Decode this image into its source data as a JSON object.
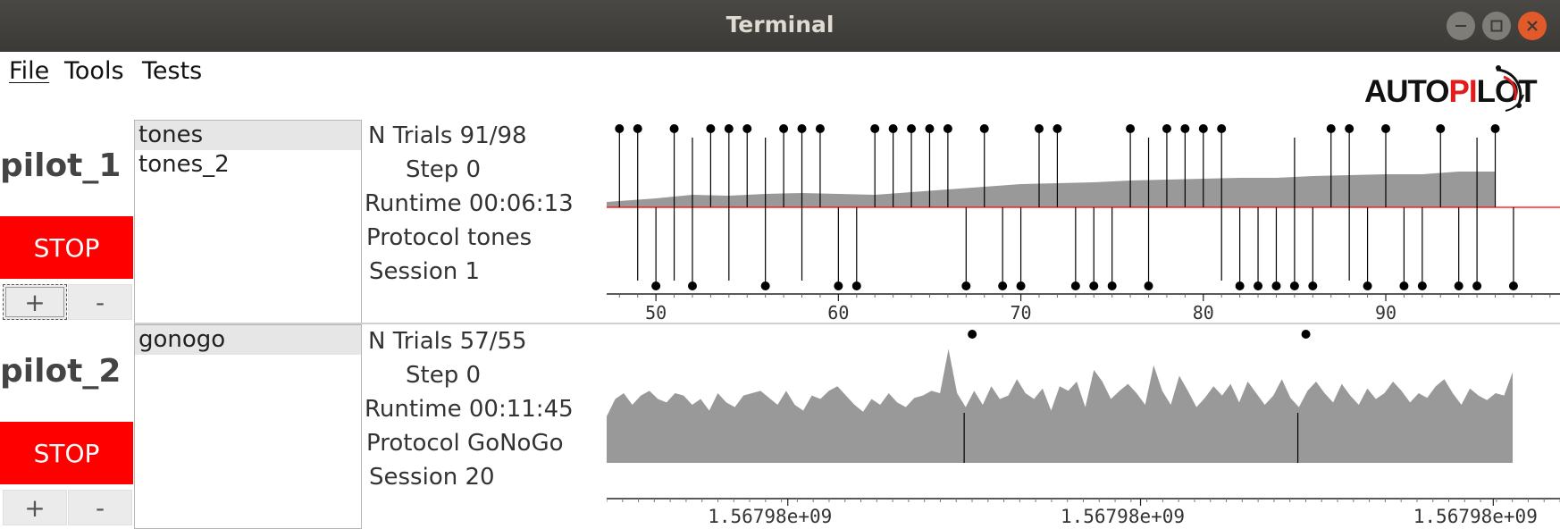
{
  "window": {
    "title": "Terminal"
  },
  "menu": {
    "items": [
      "File",
      "Tools",
      "Tests"
    ]
  },
  "logo": {
    "text_a": "AUTO",
    "text_b": "PI",
    "text_c": "LOT"
  },
  "pilots": [
    {
      "name": "pilot_1",
      "stop_label": "STOP",
      "plus_label": "+",
      "minus_label": "-",
      "tasks": [
        "tones",
        "tones_2"
      ],
      "selected_task": 0,
      "info": {
        "ntrials_label": "N Trials",
        "ntrials_value": "91/98",
        "step_label": "Step",
        "step_value": "0",
        "runtime_label": "Runtime",
        "runtime_value": "00:06:13",
        "protocol_label": "Protocol",
        "protocol_value": "tones",
        "session_label": "Session",
        "session_value": "1"
      }
    },
    {
      "name": "pilot_2",
      "stop_label": "STOP",
      "plus_label": "+",
      "minus_label": "-",
      "tasks": [
        "gonogo"
      ],
      "selected_task": 0,
      "info": {
        "ntrials_label": "N Trials",
        "ntrials_value": "57/55",
        "step_label": "Step",
        "step_value": "0",
        "runtime_label": "Runtime",
        "runtime_value": "00:11:45",
        "protocol_label": "Protocol",
        "protocol_value": "GoNoGo",
        "session_label": "Session",
        "session_value": "20"
      }
    }
  ],
  "chart_data": [
    {
      "type": "scatter",
      "xlim": [
        47.3,
        99.5
      ],
      "x_ticks": [
        50,
        60,
        70,
        80,
        90
      ],
      "x_tick_labels": [
        "50",
        "60",
        "70",
        "80",
        "90"
      ],
      "colors": {
        "stem": "#000000",
        "midline": "#ff0000",
        "area": "#999999"
      },
      "upper_trials": [
        48,
        49,
        51,
        53,
        54,
        55,
        57,
        58,
        59,
        62,
        63,
        64,
        65,
        66,
        68,
        71,
        72,
        76,
        78,
        79,
        80,
        81,
        87,
        88,
        90,
        93,
        96
      ],
      "lower_trials": [
        50,
        52,
        56,
        60,
        61,
        67,
        69,
        70,
        73,
        74,
        75,
        77,
        82,
        83,
        84,
        85,
        86,
        89,
        91,
        92,
        94,
        95,
        97
      ],
      "unmarked_stems_upper": [
        52,
        56,
        77,
        85,
        95
      ],
      "unmarked_stems_lower": [
        49,
        51,
        54,
        58,
        81,
        88
      ],
      "rolling_x": [
        47.3,
        50,
        52,
        54,
        56,
        58,
        60,
        62,
        64,
        66,
        68,
        70,
        72,
        74,
        76,
        78,
        80,
        82,
        84,
        86,
        88,
        90,
        92,
        94,
        96
      ],
      "rolling_value": [
        0.12,
        0.2,
        0.28,
        0.26,
        0.3,
        0.32,
        0.3,
        0.28,
        0.34,
        0.4,
        0.46,
        0.52,
        0.54,
        0.56,
        0.6,
        0.62,
        0.64,
        0.66,
        0.66,
        0.7,
        0.72,
        0.74,
        0.74,
        0.8,
        0.8
      ]
    },
    {
      "type": "area",
      "x_ticks_positions": [
        0.19,
        0.56,
        0.93
      ],
      "x_tick_labels": [
        "1.56798e+09",
        "1.56798e+09",
        "1.56798e+09"
      ],
      "colors": {
        "area": "#999999",
        "stem": "#000000"
      },
      "event_positions": [
        0.375,
        0.725
      ],
      "series_values": [
        0.4,
        0.55,
        0.6,
        0.5,
        0.58,
        0.62,
        0.55,
        0.52,
        0.6,
        0.58,
        0.5,
        0.55,
        0.45,
        0.6,
        0.52,
        0.48,
        0.58,
        0.6,
        0.62,
        0.56,
        0.5,
        0.62,
        0.5,
        0.45,
        0.58,
        0.55,
        0.62,
        0.66,
        0.58,
        0.5,
        0.44,
        0.55,
        0.5,
        0.6,
        0.52,
        0.48,
        0.56,
        0.58,
        0.62,
        0.6,
        0.98,
        0.6,
        0.48,
        0.62,
        0.5,
        0.66,
        0.55,
        0.58,
        0.72,
        0.6,
        0.55,
        0.64,
        0.45,
        0.66,
        0.62,
        0.7,
        0.48,
        0.8,
        0.7,
        0.55,
        0.62,
        0.68,
        0.6,
        0.5,
        0.84,
        0.62,
        0.5,
        0.75,
        0.62,
        0.48,
        0.56,
        0.66,
        0.58,
        0.68,
        0.52,
        0.7,
        0.6,
        0.5,
        0.58,
        0.72,
        0.56,
        0.48,
        0.62,
        0.7,
        0.6,
        0.52,
        0.68,
        0.58,
        0.5,
        0.64,
        0.55,
        0.6,
        0.7,
        0.62,
        0.52,
        0.6,
        0.56,
        0.66,
        0.72,
        0.6,
        0.5,
        0.64,
        0.58,
        0.54,
        0.6,
        0.58,
        0.78
      ]
    }
  ]
}
